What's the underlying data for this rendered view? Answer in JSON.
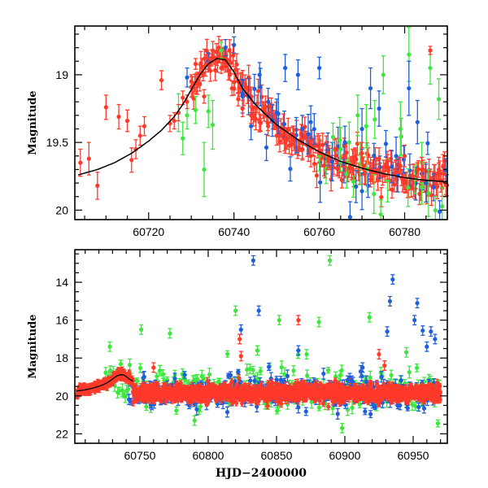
{
  "colors": {
    "blue": "#1f5fdc",
    "green": "#3fe63f",
    "red": "#ff3a2a",
    "model": "#000000"
  },
  "chart_data": [
    {
      "panel": "top",
      "type": "scatter",
      "title": "",
      "xlabel": "",
      "ylabel": "Magnitude",
      "xlim": [
        60702.7,
        60790
      ],
      "ylim": [
        20.07,
        18.64
      ],
      "y_inverted": true,
      "grid": false,
      "legend": "none",
      "xticks": [
        60720,
        60740,
        60760,
        60780
      ],
      "xtick_labels": [
        "60720",
        "60740",
        "60760",
        "60780"
      ],
      "yticks": [
        19,
        19.5,
        20
      ],
      "ytick_labels": [
        "19",
        "19.5",
        "20"
      ],
      "model_curve": {
        "name": "model",
        "x": [
          60703.5,
          60708,
          60712,
          60716,
          60720,
          60723,
          60726,
          60728,
          60730,
          60732,
          60734,
          60736,
          60738,
          60740,
          60742,
          60745,
          60750,
          60755,
          60760,
          60765,
          60770,
          60775,
          60780,
          60785,
          60790
        ],
        "y": [
          19.74,
          19.7,
          19.65,
          19.58,
          19.49,
          19.41,
          19.31,
          19.22,
          19.11,
          19.0,
          18.92,
          18.88,
          18.89,
          18.98,
          19.1,
          19.22,
          19.37,
          19.48,
          19.57,
          19.64,
          19.69,
          19.73,
          19.76,
          19.78,
          19.79
        ]
      },
      "series": [
        {
          "name": "red",
          "x": [
            60704,
            60706,
            60708,
            60710,
            60713,
            60715,
            60716,
            60717,
            60718,
            60719,
            60723,
            60725,
            60726,
            60727,
            60728,
            60729,
            60730,
            60731,
            60732,
            60733,
            60734,
            60735,
            60736,
            60737,
            60738,
            60739,
            60740,
            60741,
            60742,
            60744,
            60746,
            60748,
            60750,
            60752,
            60754,
            60756,
            60758,
            60760,
            60762,
            60764,
            60766,
            60768,
            60770,
            60772,
            60774,
            60776,
            60778,
            60780,
            60782,
            60784,
            60786,
            60788,
            60789
          ],
          "y": [
            19.65,
            19.62,
            19.82,
            19.24,
            19.31,
            19.34,
            19.63,
            19.55,
            19.45,
            19.38,
            19.04,
            19.36,
            19.34,
            19.28,
            19.17,
            19.2,
            19.05,
            18.92,
            19.07,
            19.16,
            18.92,
            18.88,
            18.9,
            18.95,
            18.94,
            19.0,
            19.1,
            19.18,
            19.25,
            19.3,
            19.35,
            19.38,
            19.45,
            19.5,
            19.45,
            19.55,
            19.6,
            19.52,
            19.62,
            19.55,
            19.6,
            19.65,
            19.58,
            19.7,
            19.62,
            19.68,
            19.72,
            19.6,
            19.75,
            19.7,
            18.82,
            19.7,
            19.68
          ],
          "yerr": [
            0.1,
            0.12,
            0.1,
            0.09,
            0.09,
            0.08,
            0.09,
            0.07,
            0.07,
            0.07,
            0.07,
            0.06,
            0.06,
            0.06,
            0.05,
            0.05,
            0.05,
            0.04,
            0.05,
            0.05,
            0.04,
            0.03,
            0.03,
            0.04,
            0.04,
            0.04,
            0.05,
            0.05,
            0.06,
            0.06,
            0.06,
            0.07,
            0.07,
            0.08,
            0.07,
            0.08,
            0.08,
            0.07,
            0.08,
            0.08,
            0.08,
            0.09,
            0.08,
            0.09,
            0.08,
            0.09,
            0.09,
            0.08,
            0.09,
            0.09,
            0.03,
            0.09,
            0.09
          ]
        },
        {
          "name": "blue",
          "x": [
            60729,
            60734,
            60738,
            60740,
            60742,
            60744,
            60746,
            60748,
            60750,
            60752,
            60755,
            60758,
            60760,
            60762,
            60766,
            60770,
            60772,
            60774,
            60778,
            60781,
            60783,
            60785
          ],
          "y": [
            19.02,
            18.9,
            18.8,
            18.78,
            19.14,
            19.38,
            19.0,
            19.2,
            19.28,
            18.95,
            19.0,
            19.35,
            18.95,
            19.55,
            19.5,
            19.4,
            19.1,
            19.25,
            19.6,
            19.1,
            19.35,
            19.8
          ],
          "yerr": [
            0.07,
            0.06,
            0.06,
            0.06,
            0.1,
            0.1,
            0.09,
            0.1,
            0.1,
            0.1,
            0.11,
            0.12,
            0.08,
            0.12,
            0.12,
            0.15,
            0.15,
            0.13,
            0.14,
            0.2,
            0.16,
            0.14
          ]
        },
        {
          "name": "green",
          "x": [
            60727,
            60728,
            60729,
            60731,
            60733,
            60734,
            60735,
            60737,
            60765,
            60767,
            60769,
            60771,
            60773,
            60775,
            60779,
            60781,
            60784,
            60786,
            60788
          ],
          "y": [
            19.28,
            19.47,
            19.3,
            19.26,
            19.7,
            19.27,
            19.37,
            18.82,
            19.55,
            19.5,
            19.3,
            19.38,
            19.33,
            19.0,
            19.4,
            18.85,
            19.65,
            18.95,
            19.18
          ],
          "yerr": [
            0.14,
            0.12,
            0.1,
            0.1,
            0.2,
            0.12,
            0.18,
            0.06,
            0.16,
            0.15,
            0.15,
            0.16,
            0.14,
            0.14,
            0.2,
            0.2,
            0.15,
            0.12,
            0.15
          ]
        }
      ]
    },
    {
      "panel": "bottom",
      "type": "scatter",
      "title": "",
      "xlabel": "HJD−2400000",
      "ylabel": "Magnitude",
      "xlim": [
        60702.4,
        60975
      ],
      "ylim": [
        22.5,
        12.28
      ],
      "y_inverted": true,
      "grid": false,
      "legend": "none",
      "xticks": [
        60750,
        60800,
        60850,
        60900,
        60950
      ],
      "xtick_labels": [
        "60750",
        "60800",
        "60850",
        "60900",
        "60950"
      ],
      "yticks": [
        14,
        16,
        18,
        20,
        22
      ],
      "ytick_labels": [
        "14",
        "16",
        "18",
        "20",
        "22"
      ],
      "baseline_magnitude": 19.85,
      "scatter_spread": 0.35,
      "series": [
        {
          "name": "blue",
          "outliers_x": [
            60833,
            60837,
            60824,
            60866,
            60905,
            60913,
            60935,
            60933,
            60953,
            60951,
            60957,
            60963,
            60966,
            60931,
            60960
          ],
          "outliers_y": [
            12.85,
            15.5,
            16.5,
            17.6,
            19.2,
            18.5,
            13.85,
            15.0,
            15.1,
            16.0,
            16.55,
            16.6,
            17.0,
            16.6,
            17.4
          ]
        },
        {
          "name": "green",
          "outliers_x": [
            60728,
            60751,
            60772,
            60820,
            60836,
            60852,
            60872,
            60881,
            60889,
            60918,
            60945,
            60790,
            60898
          ],
          "outliers_y": [
            17.4,
            16.5,
            16.7,
            15.5,
            17.6,
            16.0,
            17.8,
            16.1,
            12.85,
            15.85,
            17.7,
            21.3,
            21.7
          ]
        },
        {
          "name": "red",
          "outliers_x": [
            60760,
            60866,
            60925,
            60929,
            60823,
            60824
          ],
          "outliers_y": [
            18.5,
            16.0,
            17.8,
            18.4,
            17.0,
            17.9
          ]
        }
      ]
    }
  ]
}
